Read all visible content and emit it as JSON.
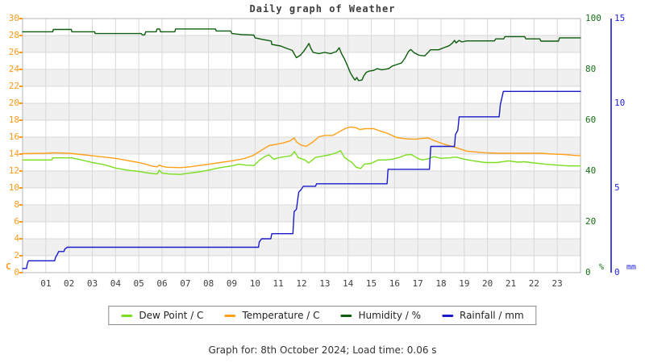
{
  "title": "Daily graph of Weather",
  "caption": "Graph for: 8th October 2024; Load time: 0.06 s",
  "colors": {
    "dew_point": "#7bdd1e",
    "temperature": "#ffa018",
    "humidity": "#0d5d0d",
    "rainfall": "#1a1acc",
    "left_axis_labels": "#ff9a1c",
    "humidity_axis_labels": "#167016",
    "rain_axis_labels": "#2222dd",
    "grid": "#d8d8d8",
    "band": "#f0f0f0",
    "plot_border": "#b4b4b4",
    "title_text": "#3c3c3c"
  },
  "axes": {
    "left": {
      "unit": "C",
      "range": [
        0,
        30
      ],
      "ticks": [
        0,
        2,
        4,
        6,
        8,
        10,
        12,
        14,
        16,
        18,
        20,
        22,
        24,
        26,
        28,
        30
      ]
    },
    "right_humidity": {
      "unit": "%",
      "range": [
        0,
        100
      ],
      "ticks": [
        0,
        20,
        40,
        60,
        80,
        100
      ]
    },
    "right_rain": {
      "unit": "mm",
      "range": [
        0,
        15
      ],
      "ticks": [
        0,
        5,
        10,
        15
      ]
    },
    "x": {
      "tick_labels": [
        "01",
        "02",
        "03",
        "04",
        "05",
        "06",
        "07",
        "08",
        "09",
        "10",
        "11",
        "12",
        "13",
        "14",
        "15",
        "16",
        "17",
        "18",
        "19",
        "20",
        "21",
        "22",
        "23"
      ]
    }
  },
  "chart_data": {
    "type": "line",
    "title": "Daily graph of Weather",
    "x_range_hours": [
      0,
      24
    ],
    "grid": true,
    "legend_position": "bottom",
    "series": [
      {
        "name": "Dew Point / C",
        "axis": "temperature_c",
        "color": "#7bdd1e",
        "points": [
          [
            0,
            13.3
          ],
          [
            1.25,
            13.3
          ],
          [
            1.3,
            13.55
          ],
          [
            2.1,
            13.55
          ],
          [
            2.4,
            13.4
          ],
          [
            3,
            13.0
          ],
          [
            3.5,
            12.75
          ],
          [
            4,
            12.35
          ],
          [
            4.5,
            12.1
          ],
          [
            5,
            11.95
          ],
          [
            5.3,
            11.8
          ],
          [
            5.6,
            11.7
          ],
          [
            5.8,
            11.65
          ],
          [
            5.88,
            12.1
          ],
          [
            6,
            11.75
          ],
          [
            6.3,
            11.65
          ],
          [
            6.8,
            11.6
          ],
          [
            7.2,
            11.75
          ],
          [
            7.6,
            11.9
          ],
          [
            8,
            12.1
          ],
          [
            8.5,
            12.4
          ],
          [
            9,
            12.6
          ],
          [
            9.3,
            12.8
          ],
          [
            9.6,
            12.7
          ],
          [
            9.95,
            12.65
          ],
          [
            10.2,
            13.3
          ],
          [
            10.45,
            13.75
          ],
          [
            10.6,
            13.9
          ],
          [
            10.8,
            13.4
          ],
          [
            11,
            13.55
          ],
          [
            11.3,
            13.7
          ],
          [
            11.55,
            13.8
          ],
          [
            11.7,
            14.3
          ],
          [
            11.85,
            13.6
          ],
          [
            12,
            13.45
          ],
          [
            12.15,
            13.3
          ],
          [
            12.3,
            12.95
          ],
          [
            12.6,
            13.6
          ],
          [
            12.9,
            13.75
          ],
          [
            13.2,
            13.9
          ],
          [
            13.5,
            14.15
          ],
          [
            13.68,
            14.4
          ],
          [
            13.85,
            13.6
          ],
          [
            14,
            13.3
          ],
          [
            14.15,
            13.05
          ],
          [
            14.35,
            12.45
          ],
          [
            14.55,
            12.3
          ],
          [
            14.7,
            12.8
          ],
          [
            15,
            12.9
          ],
          [
            15.3,
            13.3
          ],
          [
            15.6,
            13.3
          ],
          [
            15.9,
            13.4
          ],
          [
            16.2,
            13.6
          ],
          [
            16.5,
            13.9
          ],
          [
            16.72,
            13.95
          ],
          [
            17,
            13.5
          ],
          [
            17.2,
            13.3
          ],
          [
            17.45,
            13.45
          ],
          [
            17.7,
            13.7
          ],
          [
            18,
            13.5
          ],
          [
            18.35,
            13.55
          ],
          [
            18.65,
            13.65
          ],
          [
            19,
            13.4
          ],
          [
            19.4,
            13.2
          ],
          [
            19.9,
            13.0
          ],
          [
            20.4,
            13.0
          ],
          [
            20.9,
            13.2
          ],
          [
            21.3,
            13.05
          ],
          [
            21.6,
            13.1
          ],
          [
            22,
            12.95
          ],
          [
            22.5,
            12.8
          ],
          [
            23,
            12.7
          ],
          [
            23.5,
            12.6
          ],
          [
            24,
            12.6
          ]
        ]
      },
      {
        "name": "Temperature / C",
        "axis": "temperature_c",
        "color": "#ffa018",
        "points": [
          [
            0,
            14.05
          ],
          [
            1,
            14.1
          ],
          [
            1.4,
            14.15
          ],
          [
            2,
            14.1
          ],
          [
            2.5,
            13.95
          ],
          [
            3,
            13.8
          ],
          [
            3.5,
            13.65
          ],
          [
            4,
            13.5
          ],
          [
            4.5,
            13.25
          ],
          [
            5,
            13.0
          ],
          [
            5.3,
            12.8
          ],
          [
            5.6,
            12.55
          ],
          [
            5.8,
            12.5
          ],
          [
            5.88,
            12.7
          ],
          [
            6,
            12.55
          ],
          [
            6.2,
            12.45
          ],
          [
            6.8,
            12.4
          ],
          [
            7.2,
            12.5
          ],
          [
            7.6,
            12.65
          ],
          [
            8,
            12.8
          ],
          [
            8.5,
            13.0
          ],
          [
            9,
            13.2
          ],
          [
            9.5,
            13.45
          ],
          [
            9.9,
            13.8
          ],
          [
            10.3,
            14.5
          ],
          [
            10.6,
            15.0
          ],
          [
            10.9,
            15.15
          ],
          [
            11.2,
            15.3
          ],
          [
            11.5,
            15.55
          ],
          [
            11.68,
            15.9
          ],
          [
            11.78,
            15.45
          ],
          [
            11.95,
            15.1
          ],
          [
            12.2,
            14.9
          ],
          [
            12.5,
            15.45
          ],
          [
            12.75,
            16.05
          ],
          [
            13,
            16.2
          ],
          [
            13.35,
            16.2
          ],
          [
            13.6,
            16.6
          ],
          [
            13.9,
            17.05
          ],
          [
            14.1,
            17.2
          ],
          [
            14.35,
            17.1
          ],
          [
            14.5,
            16.9
          ],
          [
            14.75,
            17.0
          ],
          [
            15.1,
            17.0
          ],
          [
            15.35,
            16.75
          ],
          [
            15.65,
            16.5
          ],
          [
            15.9,
            16.2
          ],
          [
            16.1,
            15.95
          ],
          [
            16.5,
            15.8
          ],
          [
            16.9,
            15.75
          ],
          [
            17.2,
            15.85
          ],
          [
            17.45,
            15.9
          ],
          [
            17.7,
            15.6
          ],
          [
            18.1,
            15.2
          ],
          [
            18.6,
            14.8
          ],
          [
            19.1,
            14.35
          ],
          [
            19.5,
            14.25
          ],
          [
            19.9,
            14.15
          ],
          [
            20.5,
            14.1
          ],
          [
            21.5,
            14.1
          ],
          [
            22.3,
            14.1
          ],
          [
            22.8,
            14.0
          ],
          [
            23.3,
            13.95
          ],
          [
            23.7,
            13.85
          ],
          [
            24,
            13.8
          ]
        ]
      },
      {
        "name": "Humidity / %",
        "axis": "humidity_pct",
        "color": "#0d5d0d",
        "points": [
          [
            0,
            94.8
          ],
          [
            1.3,
            94.8
          ],
          [
            1.32,
            95.7
          ],
          [
            2.1,
            95.7
          ],
          [
            2.12,
            94.8
          ],
          [
            3.1,
            94.8
          ],
          [
            3.12,
            94.1
          ],
          [
            5.1,
            94.1
          ],
          [
            5.15,
            93.6
          ],
          [
            5.25,
            93.6
          ],
          [
            5.3,
            94.8
          ],
          [
            5.75,
            94.8
          ],
          [
            5.78,
            95.9
          ],
          [
            5.9,
            95.9
          ],
          [
            5.93,
            94.8
          ],
          [
            6.55,
            94.8
          ],
          [
            6.58,
            95.9
          ],
          [
            8.3,
            95.9
          ],
          [
            8.33,
            95.1
          ],
          [
            8.95,
            95.1
          ],
          [
            9,
            94.1
          ],
          [
            9.4,
            93.7
          ],
          [
            9.95,
            93.5
          ],
          [
            10,
            92.4
          ],
          [
            10.35,
            91.7
          ],
          [
            10.55,
            91.4
          ],
          [
            10.7,
            91.1
          ],
          [
            10.72,
            89.8
          ],
          [
            11.1,
            89.2
          ],
          [
            11.35,
            88.3
          ],
          [
            11.6,
            87.5
          ],
          [
            11.7,
            85.9
          ],
          [
            11.78,
            84.6
          ],
          [
            11.95,
            85.6
          ],
          [
            12.1,
            87.2
          ],
          [
            12.25,
            89.2
          ],
          [
            12.32,
            90.2
          ],
          [
            12.4,
            88.3
          ],
          [
            12.5,
            86.7
          ],
          [
            12.75,
            86.2
          ],
          [
            13,
            86.7
          ],
          [
            13.25,
            86.2
          ],
          [
            13.5,
            87.0
          ],
          [
            13.62,
            88.5
          ],
          [
            13.72,
            86.2
          ],
          [
            13.85,
            84.1
          ],
          [
            14,
            80.9
          ],
          [
            14.1,
            78.7
          ],
          [
            14.2,
            77.1
          ],
          [
            14.3,
            75.8
          ],
          [
            14.38,
            76.8
          ],
          [
            14.45,
            75.6
          ],
          [
            14.6,
            75.8
          ],
          [
            14.68,
            77.5
          ],
          [
            14.78,
            78.8
          ],
          [
            14.9,
            79.3
          ],
          [
            15.1,
            79.6
          ],
          [
            15.25,
            80.3
          ],
          [
            15.45,
            79.8
          ],
          [
            15.75,
            80.3
          ],
          [
            15.9,
            81.3
          ],
          [
            16.1,
            81.9
          ],
          [
            16.3,
            82.5
          ],
          [
            16.45,
            84.4
          ],
          [
            16.6,
            87.0
          ],
          [
            16.7,
            87.8
          ],
          [
            16.85,
            86.5
          ],
          [
            17.05,
            85.6
          ],
          [
            17.3,
            85.3
          ],
          [
            17.45,
            86.7
          ],
          [
            17.55,
            87.7
          ],
          [
            17.9,
            87.7
          ],
          [
            18.15,
            88.6
          ],
          [
            18.35,
            89.3
          ],
          [
            18.5,
            90.4
          ],
          [
            18.58,
            91.4
          ],
          [
            18.65,
            90.4
          ],
          [
            18.78,
            91.4
          ],
          [
            18.9,
            90.8
          ],
          [
            19.1,
            91.2
          ],
          [
            20.3,
            91.2
          ],
          [
            20.35,
            92.0
          ],
          [
            20.7,
            92.0
          ],
          [
            20.75,
            92.9
          ],
          [
            21.6,
            92.9
          ],
          [
            21.65,
            92.0
          ],
          [
            22.25,
            92.0
          ],
          [
            22.3,
            91.1
          ],
          [
            23.05,
            91.1
          ],
          [
            23.1,
            92.4
          ],
          [
            24,
            92.4
          ]
        ]
      },
      {
        "name": "Rainfall / mm",
        "axis": "rain_mm",
        "color": "#1a1acc",
        "points": [
          [
            0,
            0.25
          ],
          [
            0.17,
            0.25
          ],
          [
            0.2,
            0.5
          ],
          [
            0.25,
            0.7
          ],
          [
            1.38,
            0.7
          ],
          [
            1.42,
            0.9
          ],
          [
            1.5,
            1.1
          ],
          [
            1.55,
            1.25
          ],
          [
            1.78,
            1.25
          ],
          [
            1.82,
            1.4
          ],
          [
            1.93,
            1.5
          ],
          [
            10.15,
            1.5
          ],
          [
            10.18,
            1.8
          ],
          [
            10.28,
            2.0
          ],
          [
            10.68,
            2.0
          ],
          [
            10.72,
            2.3
          ],
          [
            11.63,
            2.3
          ],
          [
            11.68,
            3.6
          ],
          [
            11.78,
            3.75
          ],
          [
            11.88,
            4.75
          ],
          [
            11.98,
            4.9
          ],
          [
            12.08,
            5.1
          ],
          [
            12.6,
            5.1
          ],
          [
            12.65,
            5.25
          ],
          [
            15.68,
            5.25
          ],
          [
            15.72,
            6.1
          ],
          [
            17.5,
            6.1
          ],
          [
            17.56,
            7.45
          ],
          [
            18.58,
            7.45
          ],
          [
            18.62,
            8.15
          ],
          [
            18.72,
            8.4
          ],
          [
            18.78,
            9.2
          ],
          [
            20.5,
            9.2
          ],
          [
            20.55,
            9.9
          ],
          [
            20.68,
            10.7
          ],
          [
            24,
            10.7
          ]
        ]
      }
    ],
    "axes_meta": {
      "temperature_c": {
        "range": [
          0,
          30
        ],
        "side": "left",
        "unit": "C"
      },
      "humidity_pct": {
        "range": [
          0,
          100
        ],
        "side": "right",
        "unit": "%"
      },
      "rain_mm": {
        "range": [
          0,
          15
        ],
        "side": "right",
        "unit": "mm"
      }
    }
  }
}
